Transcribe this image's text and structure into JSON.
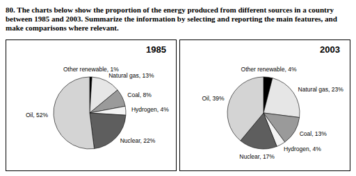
{
  "question": "80. The charts below show the proportion of the energy produced from different sources in a country between 1985 and 2003. Summarize the information by selecting and reporting the main features, and make comparisons where relevant.",
  "chart_data": [
    {
      "type": "pie",
      "title": "1985",
      "categories": [
        "Other renewable",
        "Natural gas",
        "Coal",
        "Hydrogen",
        "Nuclear",
        "Oil"
      ],
      "values": [
        1,
        13,
        8,
        4,
        22,
        52
      ],
      "value_labels": [
        "1%",
        "13%",
        "8%",
        "4%",
        "22%",
        "52%"
      ],
      "colors": [
        "#000000",
        "#e6e6e6",
        "#9a9a9a",
        "#f4f4f4",
        "#5e5e5e",
        "#d4d4d4"
      ],
      "data_labels": true
    },
    {
      "type": "pie",
      "title": "2003",
      "categories": [
        "Other renewable",
        "Natural gas",
        "Coal",
        "Hydrogen",
        "Nuclear",
        "Oil"
      ],
      "values": [
        4,
        23,
        13,
        4,
        17,
        39
      ],
      "value_labels": [
        "4%",
        "23%",
        "13%",
        "4%",
        "17%",
        "39%"
      ],
      "colors": [
        "#000000",
        "#e6e6e6",
        "#9a9a9a",
        "#f4f4f4",
        "#5e5e5e",
        "#d4d4d4"
      ],
      "data_labels": true
    }
  ]
}
